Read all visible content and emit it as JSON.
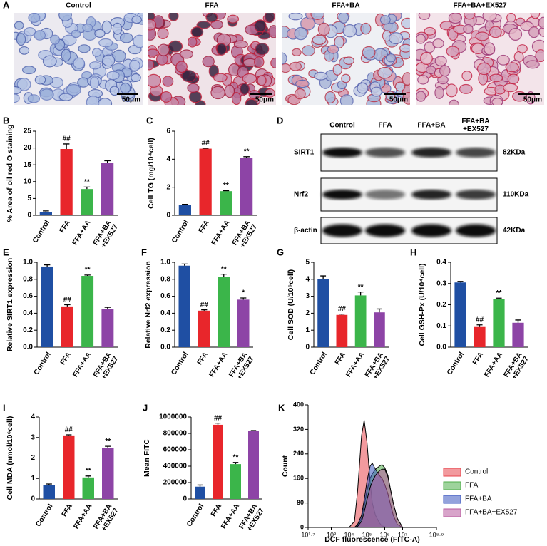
{
  "chart_data": [
    {
      "type": "image-panel",
      "label": "A",
      "titles": [
        "Control",
        "FFA",
        "FFA+BA",
        "FFA+BA+EX527"
      ],
      "scale_bars": [
        "50μm",
        "50μm",
        "50μm",
        "50μm"
      ]
    },
    {
      "type": "bar",
      "label": "B",
      "ylabel": "% Area of oil red O staining",
      "categories": [
        "Control",
        "FFA",
        "FFA+AA",
        "FFA+BA\n+EX527"
      ],
      "values": [
        1,
        19.7,
        7.8,
        15.5
      ],
      "errors": [
        0.3,
        1.5,
        0.6,
        0.7
      ],
      "annotations": [
        null,
        "##",
        "**",
        null
      ],
      "colors": [
        "#1f4fa3",
        "#e8262b",
        "#3bb54a",
        "#8d44a6"
      ],
      "ylim": [
        0,
        25
      ],
      "yticks": [
        0,
        5,
        10,
        15,
        20,
        25
      ]
    },
    {
      "type": "bar",
      "label": "C",
      "ylabel": "Cell TG (mg/10⁴cell)",
      "categories": [
        "Control",
        "FFA",
        "FFA+AA",
        "FFA+BA\n+EX527"
      ],
      "values": [
        0.75,
        4.75,
        1.72,
        4.1
      ],
      "errors": [
        0.03,
        0.03,
        0.03,
        0.08
      ],
      "annotations": [
        null,
        "##",
        "**",
        "**"
      ],
      "colors": [
        "#1f4fa3",
        "#e8262b",
        "#3bb54a",
        "#8d44a6"
      ],
      "ylim": [
        0,
        6
      ],
      "yticks": [
        0,
        2,
        4,
        6
      ]
    },
    {
      "type": "blot",
      "label": "D",
      "columns": [
        "Control",
        "FFA",
        "FFA+BA",
        "FFA+BA\n+EX527"
      ],
      "rows": [
        {
          "name": "SIRT1",
          "size": "82KDa"
        },
        {
          "name": "Nrf2",
          "size": "110KDa"
        },
        {
          "name": "β-actin",
          "size": "42KDa"
        }
      ]
    },
    {
      "type": "bar",
      "label": "E",
      "ylabel": "Relative SIRT1 expression",
      "categories": [
        "Control",
        "FFA",
        "FFA+AA",
        "FFA+BA\n+EX527"
      ],
      "values": [
        0.95,
        0.48,
        0.84,
        0.45
      ],
      "errors": [
        0.02,
        0.02,
        0.01,
        0.02
      ],
      "annotations": [
        null,
        "##",
        "**",
        null
      ],
      "colors": [
        "#1f4fa3",
        "#e8262b",
        "#3bb54a",
        "#8d44a6"
      ],
      "ylim": [
        0,
        1
      ],
      "yticks": [
        {
          "value": 0,
          "label": "0.0"
        },
        0.2,
        0.4,
        0.6,
        0.8,
        {
          "value": 1,
          "label": "1.0"
        }
      ]
    },
    {
      "type": "bar",
      "label": "F",
      "ylabel": "Relative Nrf2 expression",
      "categories": [
        "Control",
        "FFA",
        "FFA+AA",
        "FFA+BA\n+EX527"
      ],
      "values": [
        0.96,
        0.43,
        0.83,
        0.56
      ],
      "errors": [
        0.02,
        0.01,
        0.03,
        0.02
      ],
      "annotations": [
        null,
        "##",
        "**",
        "*"
      ],
      "colors": [
        "#1f4fa3",
        "#e8262b",
        "#3bb54a",
        "#8d44a6"
      ],
      "ylim": [
        0,
        1
      ],
      "yticks": [
        {
          "value": 0,
          "label": "0.0"
        },
        0.2,
        0.4,
        0.6,
        0.8,
        {
          "value": 1,
          "label": "1.0"
        }
      ]
    },
    {
      "type": "bar",
      "label": "G",
      "ylabel": "Cell SOD (U/10⁶cell)",
      "categories": [
        "Control",
        "FFA",
        "FFA+AA",
        "FFA+BA\n+EX527"
      ],
      "values": [
        4.0,
        1.9,
        3.05,
        2.05
      ],
      "errors": [
        0.2,
        0.05,
        0.2,
        0.2
      ],
      "annotations": [
        null,
        "##",
        "**",
        null
      ],
      "colors": [
        "#1f4fa3",
        "#e8262b",
        "#3bb54a",
        "#8d44a6"
      ],
      "ylim": [
        0,
        5
      ],
      "yticks": [
        0,
        1,
        2,
        3,
        4,
        5
      ]
    },
    {
      "type": "bar",
      "label": "H",
      "ylabel": "Cell GSH-Px (U/10⁴cell)",
      "categories": [
        "Control",
        "FFA",
        "FFA+AA",
        "FFA+BA\n+EX527"
      ],
      "values": [
        0.305,
        0.095,
        0.228,
        0.115
      ],
      "errors": [
        0.005,
        0.01,
        0.003,
        0.013
      ],
      "annotations": [
        null,
        "##",
        "**",
        null
      ],
      "colors": [
        "#1f4fa3",
        "#e8262b",
        "#3bb54a",
        "#8d44a6"
      ],
      "ylim": [
        0,
        0.4
      ],
      "yticks": [
        {
          "value": 0,
          "label": "0.0"
        },
        0.1,
        0.2,
        0.3,
        0.4
      ]
    },
    {
      "type": "bar",
      "label": "I",
      "ylabel": "Cell MDA (nmol/10⁶cell)",
      "categories": [
        "Control",
        "FFA",
        "FFA+AA",
        "FFA+BA\n+EX527"
      ],
      "values": [
        0.68,
        3.1,
        1.05,
        2.5
      ],
      "errors": [
        0.05,
        0.03,
        0.07,
        0.07
      ],
      "annotations": [
        null,
        "##",
        "**",
        "**"
      ],
      "colors": [
        "#1f4fa3",
        "#e8262b",
        "#3bb54a",
        "#8d44a6"
      ],
      "ylim": [
        0,
        4
      ],
      "yticks": [
        0,
        1,
        2,
        3,
        4
      ]
    },
    {
      "type": "bar",
      "label": "J",
      "ylabel": "Mean FITC",
      "categories": [
        "Control",
        "FFA",
        "FFA+AA",
        "FFA+BA\n+EX527"
      ],
      "values": [
        150000,
        905000,
        425000,
        830000
      ],
      "errors": [
        20000,
        20000,
        20000,
        5000
      ],
      "annotations": [
        null,
        "##",
        "**",
        null
      ],
      "colors": [
        "#1f4fa3",
        "#e8262b",
        "#3bb54a",
        "#8d44a6"
      ],
      "ylim": [
        0,
        1000000
      ],
      "yticks": [
        0,
        200000,
        400000,
        600000,
        800000,
        1000000
      ]
    },
    {
      "type": "density",
      "label": "K",
      "xlabel": "DCF fluorescence (FITC-A)",
      "ylabel": "Count",
      "xscale": "log",
      "xlim": [
        50.12,
        794328235
      ],
      "xticks": [
        {
          "value": 50.12,
          "label": "10¹·⁷"
        },
        {
          "value": 1000,
          "label": "10³"
        },
        {
          "value": 10000,
          "label": "10⁴"
        },
        {
          "value": 100000,
          "label": "10⁵"
        },
        {
          "value": 1000000,
          "label": "10⁶"
        },
        {
          "value": 10000000,
          "label": "10⁷"
        },
        {
          "value": 794328235,
          "label": "10⁸·⁹"
        }
      ],
      "ylim": [
        0,
        400
      ],
      "yticks": [
        0,
        80,
        160,
        240,
        320,
        400
      ],
      "x": [
        10000,
        20000,
        30000,
        50000,
        70000,
        100000,
        150000,
        200000,
        300000,
        500000,
        700000,
        1000000,
        1500000,
        2000000,
        3000000,
        5000000,
        10000000
      ],
      "series": [
        {
          "name": "Control",
          "color": "#e8474f",
          "values": [
            0,
            20,
            120,
            300,
            350,
            280,
            150,
            80,
            40,
            15,
            5,
            2,
            0,
            0,
            0,
            0,
            0
          ]
        },
        {
          "name": "FFA",
          "color": "#4fae4a",
          "values": [
            0,
            0,
            5,
            30,
            70,
            120,
            160,
            175,
            190,
            200,
            205,
            195,
            170,
            130,
            80,
            30,
            0
          ]
        },
        {
          "name": "FFA+BA",
          "color": "#3a55bf",
          "values": [
            0,
            0,
            10,
            40,
            90,
            150,
            200,
            210,
            190,
            170,
            160,
            140,
            110,
            80,
            40,
            10,
            0
          ]
        },
        {
          "name": "FFA+BA+EX527",
          "color": "#b85a9e",
          "values": [
            0,
            0,
            3,
            20,
            50,
            90,
            130,
            150,
            170,
            185,
            190,
            190,
            165,
            130,
            80,
            30,
            0
          ]
        }
      ]
    }
  ]
}
